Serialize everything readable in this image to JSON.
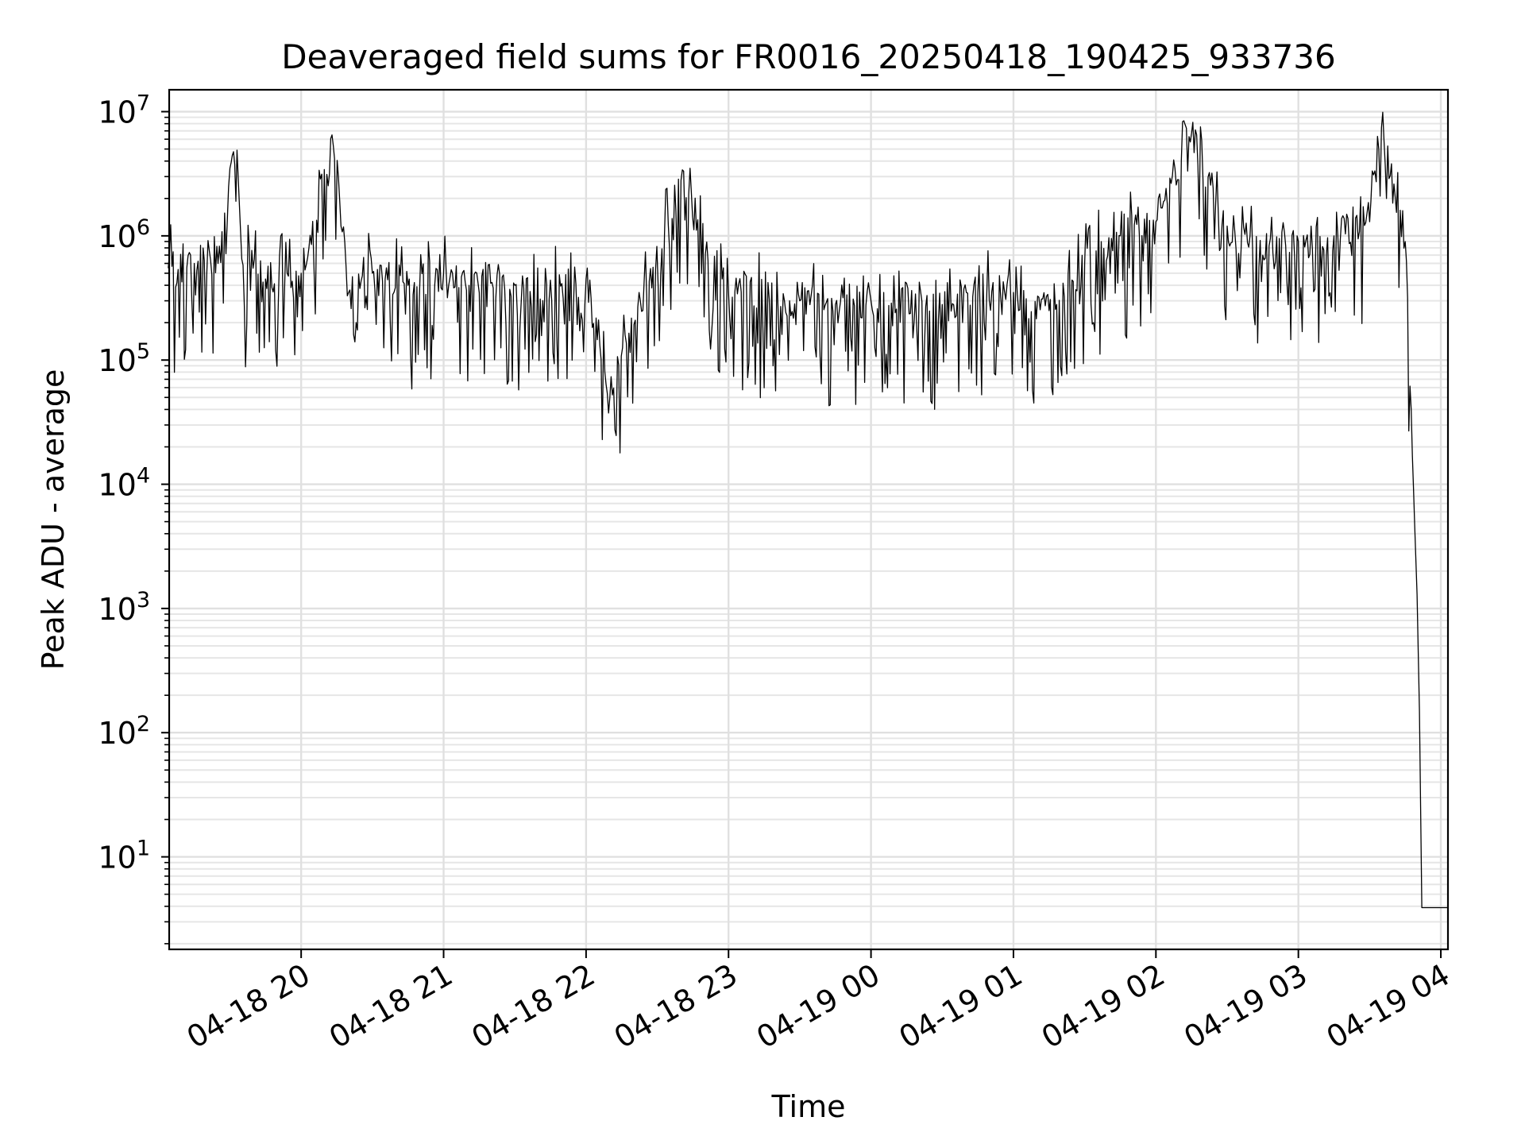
{
  "chart_data": {
    "type": "line",
    "title": "Deaveraged field sums for FR0016_20250418_190425_933736",
    "xlabel": "Time",
    "ylabel": "Peak ADU - average",
    "y_scale": "log",
    "ylim": [
      1.8,
      15000000
    ],
    "xlim": [
      "2025-04-18 19:04:25",
      "2025-04-19 04:03:00"
    ],
    "grid": true,
    "line_color": "#000000",
    "x_ticks": [
      "04-18 20",
      "04-18 21",
      "04-18 22",
      "04-18 23",
      "04-19 00",
      "04-19 01",
      "04-19 02",
      "04-19 03",
      "04-19 04"
    ],
    "y_tick_bases": [
      "10",
      "10",
      "10",
      "10",
      "10",
      "10",
      "10"
    ],
    "y_tick_exps": [
      "1",
      "2",
      "3",
      "4",
      "5",
      "6",
      "7"
    ],
    "series": [
      {
        "points": [
          [
            "2025-04-18 19:04",
            550000
          ],
          [
            "2025-04-18 19:15",
            600000
          ],
          [
            "2025-04-18 19:25",
            600000
          ],
          [
            "2025-04-18 19:30",
            3500000
          ],
          [
            "2025-04-18 19:33",
            4900000
          ],
          [
            "2025-04-18 19:35",
            650000
          ],
          [
            "2025-04-18 19:45",
            450000
          ],
          [
            "2025-04-18 20:00",
            500000
          ],
          [
            "2025-04-18 20:13",
            6500000
          ],
          [
            "2025-04-18 20:20",
            350000
          ],
          [
            "2025-04-18 20:30",
            500000
          ],
          [
            "2025-04-18 20:45",
            400000
          ],
          [
            "2025-04-18 21:00",
            500000
          ],
          [
            "2025-04-18 21:30",
            400000
          ],
          [
            "2025-04-18 22:00",
            450000
          ],
          [
            "2025-04-18 22:10",
            50000
          ],
          [
            "2025-04-18 22:40",
            2800000
          ],
          [
            "2025-04-18 23:00",
            350000
          ],
          [
            "2025-04-18 23:30",
            300000
          ],
          [
            "2025-04-19 00:00",
            300000
          ],
          [
            "2025-04-19 00:30",
            280000
          ],
          [
            "2025-04-19 00:45",
            350000
          ],
          [
            "2025-04-19 01:00",
            350000
          ],
          [
            "2025-04-19 01:15",
            250000
          ],
          [
            "2025-04-19 01:30",
            600000
          ],
          [
            "2025-04-19 01:45",
            1000000
          ],
          [
            "2025-04-19 02:00",
            1300000
          ],
          [
            "2025-04-19 02:15",
            6700000
          ],
          [
            "2025-04-19 02:30",
            1200000
          ],
          [
            "2025-04-19 02:45",
            700000
          ],
          [
            "2025-04-19 03:00",
            900000
          ],
          [
            "2025-04-19 03:15",
            1000000
          ],
          [
            "2025-04-19 03:30",
            1300000
          ],
          [
            "2025-04-19 03:35",
            7400000
          ],
          [
            "2025-04-19 03:45",
            900000
          ],
          [
            "2025-04-19 03:48",
            17000
          ],
          [
            "2025-04-19 03:50",
            1300
          ],
          [
            "2025-04-19 03:51",
            150
          ],
          [
            "2025-04-19 03:52",
            3.9
          ],
          [
            "2025-04-19 04:03",
            3.9
          ]
        ]
      }
    ]
  }
}
